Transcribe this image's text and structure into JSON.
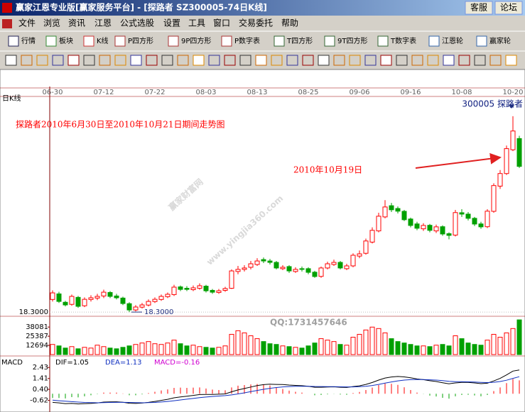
{
  "window": {
    "title": "赢家江恩专业版[赢家服务平台] - [探路者   SZ300005-74日K线]",
    "buttons": [
      "客服",
      "论坛"
    ]
  },
  "menu": [
    "文件",
    "浏览",
    "资讯",
    "江恩",
    "公式选股",
    "设置",
    "工具",
    "窗口",
    "交易委托",
    "帮助"
  ],
  "toolbar": [
    "行情",
    "板块",
    "K线",
    "P四方形",
    "9P四方形",
    "P数字表",
    "T四方形",
    "9T四方形",
    "T数字表",
    "江恩轮",
    "赢家轮"
  ],
  "watermarks": [
    "赢家财富网",
    "www.yingjia360.com",
    "QQ:1731457646"
  ],
  "chart_data": [
    {
      "type": "candlestick",
      "title": "日K线",
      "subtitle": "300005 探路者",
      "annotations": [
        "探路者2010年6月30日至2010年10月21日期间走势图",
        "2010年10月19日"
      ],
      "annotation_color": "#ff0000",
      "categories": [
        "06-30",
        null,
        null,
        null,
        null,
        null,
        null,
        null,
        "07-12",
        null,
        null,
        null,
        null,
        null,
        null,
        null,
        "07-22",
        null,
        null,
        null,
        null,
        null,
        null,
        null,
        "08-03",
        null,
        null,
        null,
        null,
        null,
        null,
        null,
        "08-13",
        null,
        null,
        null,
        null,
        null,
        null,
        null,
        "08-25",
        null,
        null,
        null,
        null,
        null,
        null,
        null,
        "09-06",
        null,
        null,
        null,
        null,
        null,
        null,
        null,
        "09-16",
        null,
        null,
        null,
        null,
        null,
        null,
        null,
        "10-08",
        null,
        null,
        null,
        null,
        null,
        null,
        null,
        "10-20",
        null
      ],
      "open": [
        19.2,
        19.6,
        19.0,
        18.85,
        19.35,
        18.75,
        19.2,
        19.3,
        19.45,
        19.7,
        19.45,
        19.3,
        18.9,
        18.45,
        18.65,
        18.8,
        19.05,
        19.2,
        19.4,
        19.55,
        20.1,
        20.0,
        19.9,
        20.0,
        20.15,
        19.85,
        19.7,
        19.85,
        20.0,
        21.2,
        21.35,
        21.5,
        21.7,
        22.05,
        21.95,
        21.85,
        21.4,
        21.55,
        21.2,
        21.4,
        21.4,
        21.15,
        20.85,
        21.45,
        21.7,
        21.85,
        21.4,
        21.6,
        22.3,
        22.5,
        23.3,
        24.1,
        25.1,
        25.9,
        25.7,
        25.5,
        24.95,
        24.6,
        24.25,
        24.5,
        24.1,
        24.4,
        23.9,
        23.8,
        25.4,
        25.3,
        25.0,
        24.6,
        24.4,
        25.5,
        27.3,
        28.2,
        29.9,
        30.7
      ],
      "high": [
        19.85,
        19.75,
        19.1,
        19.55,
        19.45,
        19.35,
        19.5,
        19.6,
        19.9,
        19.8,
        19.6,
        19.4,
        19.0,
        18.8,
        18.95,
        19.2,
        19.35,
        19.55,
        19.7,
        20.25,
        20.2,
        20.15,
        20.2,
        20.35,
        20.25,
        19.95,
        19.95,
        20.1,
        21.35,
        21.6,
        21.65,
        21.95,
        22.15,
        22.2,
        22.1,
        21.95,
        21.65,
        21.65,
        21.5,
        21.55,
        21.5,
        21.25,
        21.55,
        21.9,
        22.05,
        21.95,
        21.75,
        22.5,
        22.7,
        23.55,
        24.35,
        25.4,
        26.3,
        26.1,
        25.85,
        25.6,
        25.05,
        24.75,
        24.65,
        24.6,
        24.55,
        24.5,
        24.0,
        25.6,
        25.65,
        25.45,
        25.1,
        24.75,
        25.65,
        27.5,
        28.45,
        30.2,
        32.3,
        30.9
      ],
      "low": [
        19.05,
        18.95,
        18.7,
        18.75,
        18.6,
        18.65,
        19.05,
        19.15,
        19.3,
        19.3,
        19.2,
        18.8,
        18.3,
        18.35,
        18.55,
        18.7,
        18.95,
        19.1,
        19.3,
        19.45,
        19.8,
        19.8,
        19.8,
        19.9,
        19.7,
        19.6,
        19.6,
        19.75,
        19.95,
        21.0,
        21.2,
        21.35,
        21.6,
        21.8,
        21.7,
        21.35,
        21.3,
        21.1,
        21.1,
        21.2,
        21.0,
        20.75,
        20.75,
        21.35,
        21.6,
        21.35,
        21.3,
        21.5,
        22.15,
        22.4,
        23.2,
        24.0,
        25.0,
        25.45,
        25.35,
        24.8,
        24.35,
        24.15,
        24.1,
        24.0,
        23.95,
        23.75,
        23.5,
        23.7,
        25.1,
        24.85,
        24.45,
        24.25,
        24.3,
        25.4,
        27.1,
        28.1,
        29.8,
        28.6
      ],
      "close": [
        19.67,
        19.06,
        18.81,
        19.42,
        18.71,
        19.21,
        19.32,
        19.42,
        19.72,
        19.42,
        19.32,
        18.91,
        18.45,
        18.66,
        18.81,
        19.06,
        19.21,
        19.42,
        19.57,
        20.08,
        19.92,
        19.92,
        20.03,
        20.18,
        19.82,
        19.72,
        19.82,
        19.98,
        21.24,
        21.35,
        21.45,
        21.75,
        21.95,
        21.95,
        21.85,
        21.45,
        21.5,
        21.24,
        21.35,
        21.35,
        21.14,
        20.84,
        21.45,
        21.75,
        21.85,
        21.45,
        21.6,
        22.36,
        22.46,
        23.38,
        24.14,
        25.15,
        25.81,
        25.61,
        25.51,
        24.9,
        24.49,
        24.29,
        24.49,
        24.14,
        24.39,
        23.88,
        23.78,
        25.41,
        25.3,
        25.0,
        24.59,
        24.39,
        25.51,
        27.34,
        28.2,
        29.98,
        31.24,
        28.71
      ],
      "up_color": "#ff0000",
      "down_color": "#00a000",
      "ylim": [
        18.05,
        33.0
      ],
      "yticks": [
        {
          "value": 18.3,
          "label": "18.3000"
        }
      ],
      "low_marker": {
        "value": 18.3,
        "label": "18.3000"
      }
    },
    {
      "type": "volume",
      "values": [
        14000,
        12000,
        9000,
        11000,
        8000,
        10000,
        9000,
        13000,
        11000,
        9000,
        8000,
        10000,
        12000,
        14000,
        16000,
        18000,
        15000,
        14000,
        16000,
        20000,
        15000,
        12000,
        13000,
        11000,
        10000,
        9000,
        10000,
        12000,
        28000,
        33000,
        30000,
        26000,
        22000,
        18000,
        15000,
        14000,
        12000,
        11000,
        10000,
        9000,
        12000,
        16000,
        22000,
        20000,
        18000,
        14000,
        13000,
        24000,
        28000,
        34000,
        38000,
        36000,
        30000,
        22000,
        18000,
        16000,
        14000,
        12000,
        12000,
        11000,
        13000,
        14000,
        12000,
        26000,
        22000,
        16000,
        14000,
        13000,
        20000,
        28000,
        24000,
        30000,
        36000,
        48000
      ],
      "ylim": [
        0,
        52000
      ],
      "yticks": [
        12694,
        25387,
        38081
      ]
    },
    {
      "type": "macd",
      "title": "MACD",
      "ylim": [
        -1.5,
        3.3
      ],
      "yticks": [
        -0.62,
        {
          "value": 0.4,
          "label": "0.40"
        },
        1.41,
        2.43
      ],
      "series": [
        {
          "name": "DIF=1.05",
          "color": "#000000",
          "values": [
            -0.8,
            -0.85,
            -0.92,
            -0.9,
            -0.95,
            -0.93,
            -0.9,
            -0.86,
            -0.78,
            -0.76,
            -0.75,
            -0.79,
            -0.88,
            -0.9,
            -0.87,
            -0.8,
            -0.72,
            -0.62,
            -0.52,
            -0.38,
            -0.3,
            -0.24,
            -0.16,
            -0.08,
            -0.07,
            -0.07,
            -0.05,
            -0.02,
            0.18,
            0.35,
            0.48,
            0.62,
            0.75,
            0.84,
            0.88,
            0.86,
            0.85,
            0.8,
            0.77,
            0.74,
            0.69,
            0.6,
            0.6,
            0.62,
            0.64,
            0.6,
            0.58,
            0.66,
            0.73,
            0.86,
            1.04,
            1.26,
            1.45,
            1.55,
            1.6,
            1.56,
            1.47,
            1.37,
            1.3,
            1.2,
            1.13,
            1.02,
            0.92,
            1.0,
            1.05,
            1.05,
            1.0,
            0.93,
            0.97,
            1.18,
            1.42,
            1.74,
            2.1,
            2.2
          ]
        },
        {
          "name": "DEA=1.13",
          "color": "#1030c0",
          "values": [
            -0.6,
            -0.65,
            -0.7,
            -0.74,
            -0.78,
            -0.81,
            -0.83,
            -0.84,
            -0.83,
            -0.81,
            -0.8,
            -0.8,
            -0.81,
            -0.83,
            -0.84,
            -0.83,
            -0.81,
            -0.77,
            -0.72,
            -0.65,
            -0.58,
            -0.51,
            -0.44,
            -0.37,
            -0.31,
            -0.26,
            -0.22,
            -0.18,
            -0.11,
            -0.02,
            0.08,
            0.19,
            0.3,
            0.41,
            0.5,
            0.57,
            0.63,
            0.66,
            0.68,
            0.69,
            0.69,
            0.67,
            0.66,
            0.65,
            0.65,
            0.64,
            0.63,
            0.63,
            0.65,
            0.69,
            0.76,
            0.86,
            0.98,
            1.09,
            1.19,
            1.26,
            1.3,
            1.32,
            1.31,
            1.29,
            1.26,
            1.21,
            1.15,
            1.12,
            1.11,
            1.1,
            1.08,
            1.05,
            1.03,
            1.06,
            1.13,
            1.25,
            1.42,
            1.58
          ]
        },
        {
          "name": "MACD=-0.16",
          "color": "#d000d0",
          "up_color": "#ff0000",
          "down_color": "#00a000",
          "values": [
            -0.4,
            -0.4,
            -0.44,
            -0.32,
            -0.34,
            -0.24,
            -0.14,
            -0.04,
            0.1,
            0.1,
            0.1,
            0.02,
            -0.14,
            -0.14,
            -0.06,
            0.06,
            0.18,
            0.3,
            0.4,
            0.54,
            0.56,
            0.54,
            0.56,
            0.58,
            0.48,
            0.38,
            0.34,
            0.32,
            0.58,
            0.74,
            0.8,
            0.86,
            0.9,
            0.86,
            0.76,
            0.58,
            0.44,
            0.28,
            0.18,
            0.1,
            0.0,
            -0.14,
            -0.12,
            -0.06,
            -0.02,
            -0.08,
            -0.1,
            0.06,
            0.16,
            0.34,
            0.56,
            0.8,
            0.94,
            0.92,
            0.82,
            0.6,
            0.34,
            0.1,
            -0.02,
            -0.18,
            -0.26,
            -0.38,
            -0.46,
            -0.24,
            -0.12,
            -0.1,
            -0.16,
            -0.24,
            -0.12,
            0.24,
            0.58,
            0.98,
            1.36,
            1.24
          ]
        }
      ]
    }
  ]
}
